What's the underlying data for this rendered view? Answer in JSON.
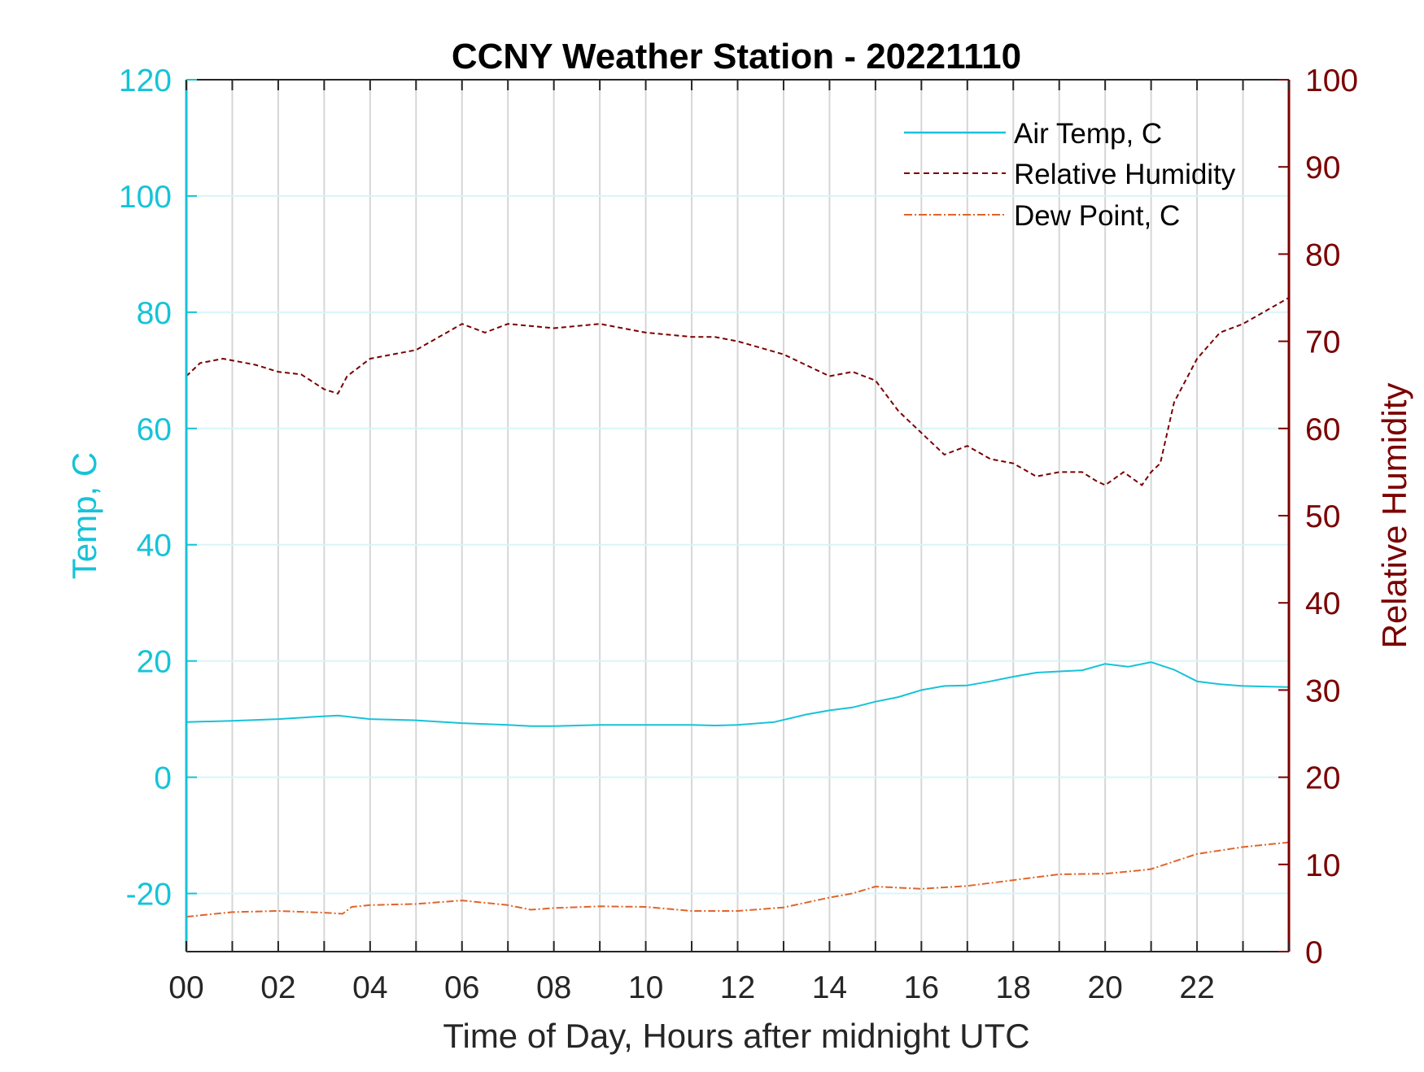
{
  "chart_data": {
    "type": "line",
    "title": "CCNY Weather Station - 20221110",
    "xlabel": "Time of Day, Hours after midnight UTC",
    "ylabel_left": "Temp, C",
    "ylabel_right": "Relative Humidity",
    "xlim": [
      0,
      24
    ],
    "ylim_left": [
      -30,
      120
    ],
    "ylim_right": [
      0,
      100
    ],
    "x_ticks": [
      0,
      2,
      4,
      6,
      8,
      10,
      12,
      14,
      16,
      18,
      20,
      22
    ],
    "x_tick_labels": [
      "00",
      "02",
      "04",
      "06",
      "08",
      "10",
      "12",
      "14",
      "16",
      "18",
      "20",
      "22"
    ],
    "y_left_ticks": [
      -20,
      0,
      20,
      40,
      60,
      80,
      100,
      120
    ],
    "y_left_tick_labels": [
      "-20",
      "0",
      "20",
      "40",
      "60",
      "80",
      "100",
      "120"
    ],
    "y_right_ticks": [
      0,
      10,
      20,
      30,
      40,
      50,
      60,
      70,
      80,
      90,
      100
    ],
    "y_right_tick_labels": [
      "0",
      "10",
      "20",
      "30",
      "40",
      "50",
      "60",
      "70",
      "80",
      "90",
      "100"
    ],
    "grid": "vertical every hour, horizontal on left ticks",
    "legend_position": "top-right",
    "colors": {
      "left_axis": "#16c3d8",
      "right_axis": "#7a0000",
      "dew": "#e0642a",
      "grid": "#d3d3d3"
    },
    "series": [
      {
        "name": "Air Temp, C",
        "axis": "left",
        "style": "solid",
        "color": "#16c3d8",
        "x": [
          0,
          1,
          2,
          3,
          3.3,
          4,
          5,
          6,
          7,
          7.5,
          8,
          9,
          10,
          11,
          11.5,
          12,
          12.8,
          13.5,
          14,
          14.5,
          15,
          15.5,
          16,
          16.5,
          17,
          17.5,
          18,
          18.5,
          19,
          19.5,
          20,
          20.5,
          21,
          21.5,
          22,
          22.5,
          23,
          23.5,
          24
        ],
        "y": [
          9.5,
          9.7,
          10.0,
          10.5,
          10.6,
          10.0,
          9.8,
          9.3,
          9.0,
          8.8,
          8.8,
          9.0,
          9.0,
          9.0,
          8.9,
          9.0,
          9.5,
          10.8,
          11.5,
          12.0,
          13.0,
          13.8,
          15.0,
          15.7,
          15.8,
          16.5,
          17.3,
          18.0,
          18.2,
          18.4,
          19.5,
          19.0,
          19.8,
          18.5,
          16.5,
          16.0,
          15.7,
          15.6,
          15.5
        ]
      },
      {
        "name": "Relative Humidity",
        "axis": "right",
        "style": "dashed",
        "color": "#7a0000",
        "x": [
          0,
          0.3,
          0.8,
          1.5,
          2,
          2.5,
          3,
          3.3,
          3.5,
          4,
          5,
          6,
          6.5,
          7,
          8,
          9,
          10,
          11,
          11.5,
          12,
          13,
          14,
          14.5,
          15,
          15.5,
          16,
          16.5,
          17,
          17.5,
          18,
          18.5,
          19,
          19.3,
          19.5,
          19.8,
          20,
          20.4,
          20.8,
          21,
          21.2,
          21.5,
          22,
          22.5,
          23,
          23.5,
          24
        ],
        "y": [
          66,
          67.5,
          68,
          67.3,
          66.5,
          66.2,
          64.5,
          64,
          66,
          68,
          69,
          72,
          71,
          72,
          71.5,
          72,
          71,
          70.5,
          70.5,
          70,
          68.5,
          66,
          66.5,
          65.5,
          62,
          59.5,
          57,
          58,
          56.5,
          56,
          54.5,
          55,
          55,
          55,
          54,
          53.5,
          55,
          53.5,
          55,
          56,
          63,
          68,
          71,
          72,
          73.5,
          75
        ]
      },
      {
        "name": "Dew Point, C",
        "axis": "left",
        "style": "dashdot",
        "color": "#e0642a",
        "x": [
          0,
          1,
          2,
          3,
          3.4,
          3.6,
          4,
          5,
          6,
          7,
          7.5,
          8,
          9,
          10,
          11,
          12,
          13,
          14,
          14.5,
          15,
          16,
          17,
          18,
          19,
          20,
          20.8,
          21,
          21.5,
          22,
          23,
          24
        ],
        "y": [
          -24.0,
          -23.2,
          -23.0,
          -23.3,
          -23.5,
          -22.3,
          -22.0,
          -21.8,
          -21.2,
          -22.0,
          -22.8,
          -22.5,
          -22.2,
          -22.3,
          -23.0,
          -23.0,
          -22.4,
          -20.7,
          -20.0,
          -18.8,
          -19.2,
          -18.7,
          -17.7,
          -16.7,
          -16.6,
          -16.0,
          -15.8,
          -14.5,
          -13.2,
          -12.0,
          -11.2
        ]
      }
    ]
  }
}
